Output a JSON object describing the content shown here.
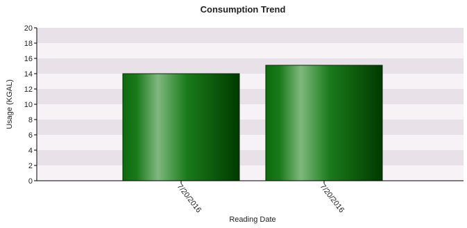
{
  "chart_data": {
    "type": "bar",
    "title": "Consumption Trend",
    "xlabel": "Reading Date",
    "ylabel": "Usage (KGAL)",
    "categories": [
      "7/20/2016",
      "7/20/2016"
    ],
    "values": [
      14,
      15.1
    ],
    "ylim": [
      0,
      20
    ],
    "yticks": [
      0,
      2,
      4,
      6,
      8,
      10,
      12,
      14,
      16,
      18,
      20
    ],
    "grid": "horizontal alternating bands",
    "legend": "none",
    "colors": {
      "bar_dark": "#003a00",
      "bar_mid": "#1a7a1a",
      "bar_light": "#7fb87f",
      "band_a": "#e8e2e8",
      "band_b": "#f6f2f6",
      "axis": "#000000"
    }
  }
}
